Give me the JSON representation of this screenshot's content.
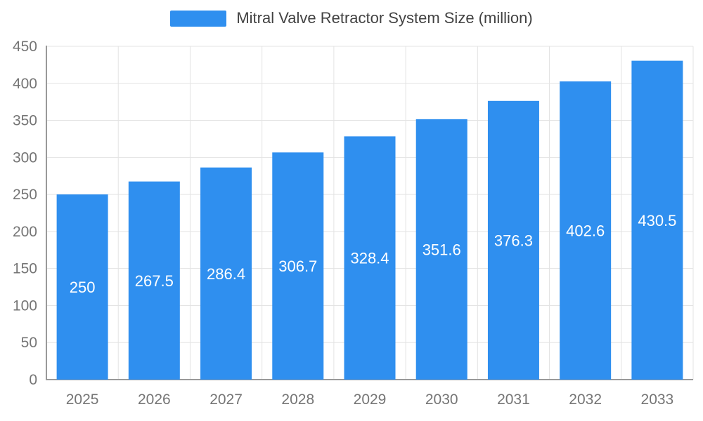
{
  "legend": {
    "label": "Mitral Valve Retractor System Size (million)"
  },
  "chart_data": {
    "type": "bar",
    "title": "Mitral Valve Retractor System Size (million)",
    "categories": [
      "2025",
      "2026",
      "2027",
      "2028",
      "2029",
      "2030",
      "2031",
      "2032",
      "2033"
    ],
    "values": [
      250,
      267.5,
      286.4,
      306.7,
      328.4,
      351.6,
      376.3,
      402.6,
      430.5
    ],
    "value_labels": [
      "250",
      "267.5",
      "286.4",
      "306.7",
      "328.4",
      "351.6",
      "376.3",
      "402.6",
      "430.5"
    ],
    "xlabel": "",
    "ylabel": "",
    "ylim": [
      0,
      450
    ],
    "y_ticks": [
      0,
      50,
      100,
      150,
      200,
      250,
      300,
      350,
      400,
      450
    ],
    "grid": true,
    "legend_position": "top",
    "bar_color": "#2F8FEF",
    "label_color": "#ffffff",
    "axis_text_color": "#757575",
    "title_color": "#424242",
    "axis_line_color": "#9a9a9a",
    "gridline_color": "#e3e3e3"
  }
}
